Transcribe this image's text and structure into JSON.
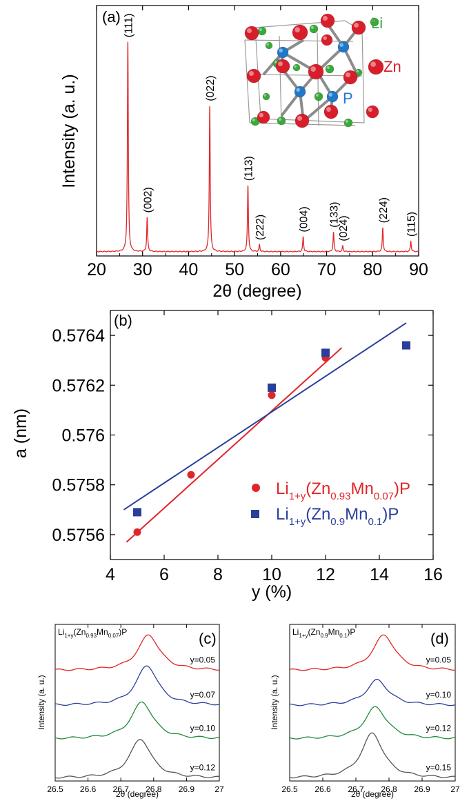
{
  "chart_data": [
    {
      "panel": "(a)",
      "type": "line",
      "xlabel": "2θ (degree)",
      "ylabel": "Intensity (a. u.)",
      "xlim": [
        20,
        90
      ],
      "xticks": [
        20,
        30,
        40,
        50,
        60,
        70,
        80,
        90
      ],
      "color": "#e0262a",
      "peaks": [
        {
          "x": 26.8,
          "h": 0.92,
          "label": "(111)"
        },
        {
          "x": 31.0,
          "h": 0.15,
          "label": "(002)"
        },
        {
          "x": 44.6,
          "h": 0.64,
          "label": "(022)"
        },
        {
          "x": 52.9,
          "h": 0.29,
          "label": "(113)"
        },
        {
          "x": 55.4,
          "h": 0.03,
          "label": "(222)"
        },
        {
          "x": 64.9,
          "h": 0.065,
          "label": "(004)"
        },
        {
          "x": 71.5,
          "h": 0.085,
          "label": "(133)"
        },
        {
          "x": 73.5,
          "h": 0.025,
          "label": "(024)"
        },
        {
          "x": 82.2,
          "h": 0.105,
          "label": "(224)"
        },
        {
          "x": 88.3,
          "h": 0.045,
          "label": "(115)"
        }
      ],
      "inset_labels": {
        "li": "Li",
        "zn": "Zn",
        "p": "P"
      },
      "inset_colors": {
        "li": "#3aa83a",
        "zn": "#d81e2a",
        "p": "#1f78c8"
      }
    },
    {
      "panel": "(b)",
      "type": "scatter",
      "xlabel": "y (%)",
      "ylabel": "a (nm)",
      "xlim": [
        4,
        16
      ],
      "ylim": [
        0.5755,
        0.5765
      ],
      "xticks": [
        4,
        6,
        8,
        10,
        12,
        14,
        16
      ],
      "yticks": [
        0.5756,
        0.5758,
        0.576,
        0.5762,
        0.5764
      ],
      "ytick_labels": [
        "0.5756",
        "0.5758",
        "0.576",
        "0.5762",
        "0.5764"
      ],
      "series": [
        {
          "name_main": "Li",
          "name_sub1": "1+y",
          "name_mid1": "(Zn",
          "name_sub2": "0.93",
          "name_mid2": "Mn",
          "name_sub3": "0.07",
          "name_end": ")P",
          "color": "#e0262a",
          "marker": "circle",
          "x": [
            5,
            7,
            10,
            12
          ],
          "y": [
            0.57561,
            0.57584,
            0.57616,
            0.57631
          ],
          "fit": {
            "x": [
              4.6,
              12.6
            ],
            "y": [
              0.57557,
              0.57635
            ]
          }
        },
        {
          "name_main": "Li",
          "name_sub1": "1+y",
          "name_mid1": "(Zn",
          "name_sub2": "0.9",
          "name_mid2": "Mn",
          "name_sub3": "0.1",
          "name_end": ")P",
          "color": "#2a3f9a",
          "marker": "square",
          "x": [
            5,
            10,
            12,
            15
          ],
          "y": [
            0.57569,
            0.57619,
            0.57633,
            0.57636
          ],
          "fit": {
            "x": [
              4.5,
              15.0
            ],
            "y": [
              0.5757,
              0.57645
            ]
          }
        }
      ]
    },
    {
      "panel": "(c)",
      "type": "line",
      "xlabel": "2θ (degree)",
      "ylabel": "Intensity (a. u.)",
      "xlim": [
        26.5,
        27
      ],
      "xticks": [
        26.5,
        26.6,
        26.7,
        26.8,
        26.9,
        27
      ],
      "xtick_labels": [
        "26.5",
        "26.6",
        "26.7",
        "26.8",
        "26.9",
        "27"
      ],
      "title_main": "Li",
      "title_sub1": "1+y",
      "title_mid1": "(Zn",
      "title_sub2": "0.93",
      "title_mid2": "Mn",
      "title_sub3": "0.07",
      "title_end": ")P",
      "series": [
        {
          "label": "y=0.05",
          "color": "#e0262a",
          "center": 26.785,
          "offset": 0.74,
          "height": 0.245
        },
        {
          "label": "y=0.07",
          "color": "#2a3f9a",
          "center": 26.78,
          "offset": 0.5,
          "height": 0.275
        },
        {
          "label": "y=0.10",
          "color": "#1e8a3a",
          "center": 26.765,
          "offset": 0.27,
          "height": 0.255
        },
        {
          "label": "y=0.12",
          "color": "#555555",
          "center": 26.76,
          "offset": 0.0,
          "height": 0.27
        }
      ]
    },
    {
      "panel": "(d)",
      "type": "line",
      "xlabel": "2θ (degree)",
      "ylabel": "Intensity (a. u.)",
      "xlim": [
        26.5,
        27
      ],
      "xticks": [
        26.5,
        26.6,
        26.7,
        26.8,
        26.9,
        27
      ],
      "xtick_labels": [
        "26.5",
        "26.6",
        "26.7",
        "26.8",
        "26.9",
        "27"
      ],
      "title_main": "Li",
      "title_sub1": "1+y",
      "title_mid1": "(Zn",
      "title_sub2": "0.9",
      "title_mid2": "Mn",
      "title_sub3": "0.1",
      "title_end": ")P",
      "series": [
        {
          "label": "y=0.05",
          "color": "#e0262a",
          "center": 26.785,
          "offset": 0.74,
          "height": 0.245
        },
        {
          "label": "y=0.10",
          "color": "#2a3f9a",
          "center": 26.765,
          "offset": 0.5,
          "height": 0.175
        },
        {
          "label": "y=0.12",
          "color": "#1e8a3a",
          "center": 26.76,
          "offset": 0.27,
          "height": 0.22
        },
        {
          "label": "y=0.15",
          "color": "#555555",
          "center": 26.75,
          "offset": 0.0,
          "height": 0.31
        }
      ]
    }
  ]
}
